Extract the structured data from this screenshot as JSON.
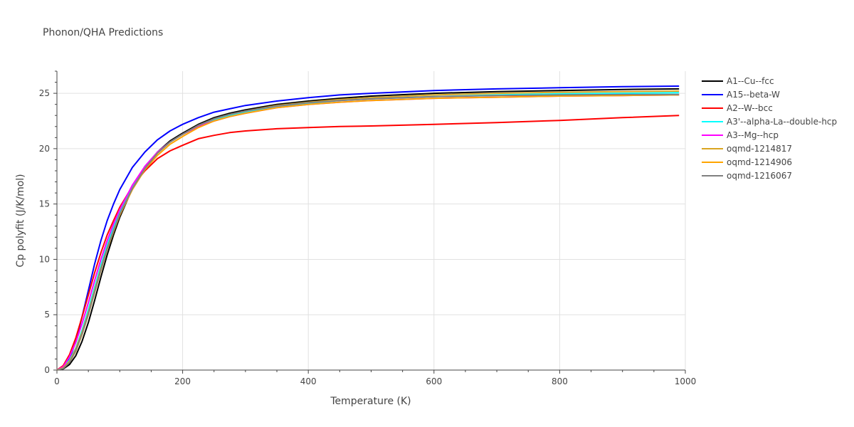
{
  "chart_data": {
    "type": "line",
    "title": "Phonon/QHA Predictions",
    "xlabel": "Temperature (K)",
    "ylabel": "Cp polyfit (J/K/mol)",
    "xlim": [
      0,
      1000
    ],
    "ylim": [
      0,
      27
    ],
    "xticks": [
      0,
      200,
      400,
      600,
      800,
      1000
    ],
    "yticks": [
      0,
      5,
      10,
      15,
      20,
      25
    ],
    "grid": true,
    "legend_position": "right",
    "x": [
      0,
      10,
      20,
      30,
      40,
      50,
      60,
      70,
      80,
      90,
      100,
      120,
      140,
      160,
      180,
      200,
      225,
      250,
      275,
      300,
      350,
      400,
      450,
      500,
      600,
      700,
      800,
      900,
      990
    ],
    "series": [
      {
        "name": "A1--Cu--fcc",
        "color": "#000000",
        "values": [
          0,
          0.1,
          0.5,
          1.3,
          2.6,
          4.3,
          6.3,
          8.4,
          10.4,
          12.2,
          13.8,
          16.4,
          18.3,
          19.7,
          20.7,
          21.4,
          22.2,
          22.8,
          23.2,
          23.5,
          24.0,
          24.3,
          24.55,
          24.75,
          25.0,
          25.15,
          25.25,
          25.35,
          25.4
        ]
      },
      {
        "name": "A15--beta-W",
        "color": "#0000ff",
        "values": [
          0,
          0.2,
          1.0,
          2.6,
          4.8,
          7.2,
          9.6,
          11.7,
          13.5,
          15.0,
          16.3,
          18.3,
          19.7,
          20.8,
          21.6,
          22.2,
          22.8,
          23.3,
          23.6,
          23.9,
          24.3,
          24.6,
          24.85,
          25.0,
          25.25,
          25.4,
          25.5,
          25.6,
          25.65
        ]
      },
      {
        "name": "A2--W--bcc",
        "color": "#ff0000",
        "values": [
          0,
          0.4,
          1.4,
          2.9,
          4.8,
          6.8,
          8.8,
          10.6,
          12.2,
          13.5,
          14.7,
          16.6,
          18.0,
          19.1,
          19.8,
          20.3,
          20.9,
          21.2,
          21.45,
          21.6,
          21.8,
          21.9,
          22.0,
          22.05,
          22.2,
          22.35,
          22.55,
          22.8,
          23.0
        ]
      },
      {
        "name": "A3'--alpha-La--double-hcp",
        "color": "#00ffff",
        "values": [
          0,
          0.2,
          0.9,
          2.0,
          3.6,
          5.5,
          7.5,
          9.5,
          11.3,
          12.9,
          14.3,
          16.6,
          18.4,
          19.7,
          20.6,
          21.3,
          22.1,
          22.6,
          23.0,
          23.3,
          23.8,
          24.1,
          24.35,
          24.5,
          24.7,
          24.85,
          24.95,
          25.0,
          25.05
        ]
      },
      {
        "name": "A3--Mg--hcp",
        "color": "#ff00ff",
        "values": [
          0,
          0.3,
          1.2,
          2.5,
          4.2,
          6.1,
          8.1,
          10.0,
          11.7,
          13.2,
          14.5,
          16.7,
          18.4,
          19.7,
          20.6,
          21.3,
          22.0,
          22.5,
          22.9,
          23.2,
          23.7,
          24.0,
          24.2,
          24.35,
          24.55,
          24.65,
          24.75,
          24.8,
          24.85
        ]
      },
      {
        "name": "oqmd-1214817",
        "color": "#daa520",
        "values": [
          0,
          0.15,
          0.7,
          1.7,
          3.2,
          5.0,
          7.0,
          9.0,
          10.9,
          12.5,
          14.0,
          16.4,
          18.2,
          19.6,
          20.6,
          21.3,
          22.1,
          22.7,
          23.1,
          23.4,
          23.9,
          24.2,
          24.45,
          24.6,
          24.85,
          25.0,
          25.1,
          25.15,
          25.2
        ]
      },
      {
        "name": "oqmd-1214906",
        "color": "#ffa500",
        "values": [
          0,
          0.2,
          0.8,
          1.9,
          3.4,
          5.2,
          7.2,
          9.2,
          11.0,
          12.6,
          14.0,
          16.3,
          18.1,
          19.4,
          20.4,
          21.1,
          21.9,
          22.5,
          22.9,
          23.2,
          23.7,
          24.0,
          24.2,
          24.35,
          24.55,
          24.65,
          24.75,
          24.8,
          24.85
        ]
      },
      {
        "name": "oqmd-1216067",
        "color": "#808080",
        "values": [
          0,
          0.15,
          0.7,
          1.8,
          3.3,
          5.1,
          7.1,
          9.1,
          11.0,
          12.6,
          14.1,
          16.4,
          18.2,
          19.6,
          20.6,
          21.3,
          22.1,
          22.7,
          23.1,
          23.4,
          23.85,
          24.15,
          24.35,
          24.5,
          24.7,
          24.8,
          24.85,
          24.9,
          24.9
        ]
      }
    ]
  }
}
